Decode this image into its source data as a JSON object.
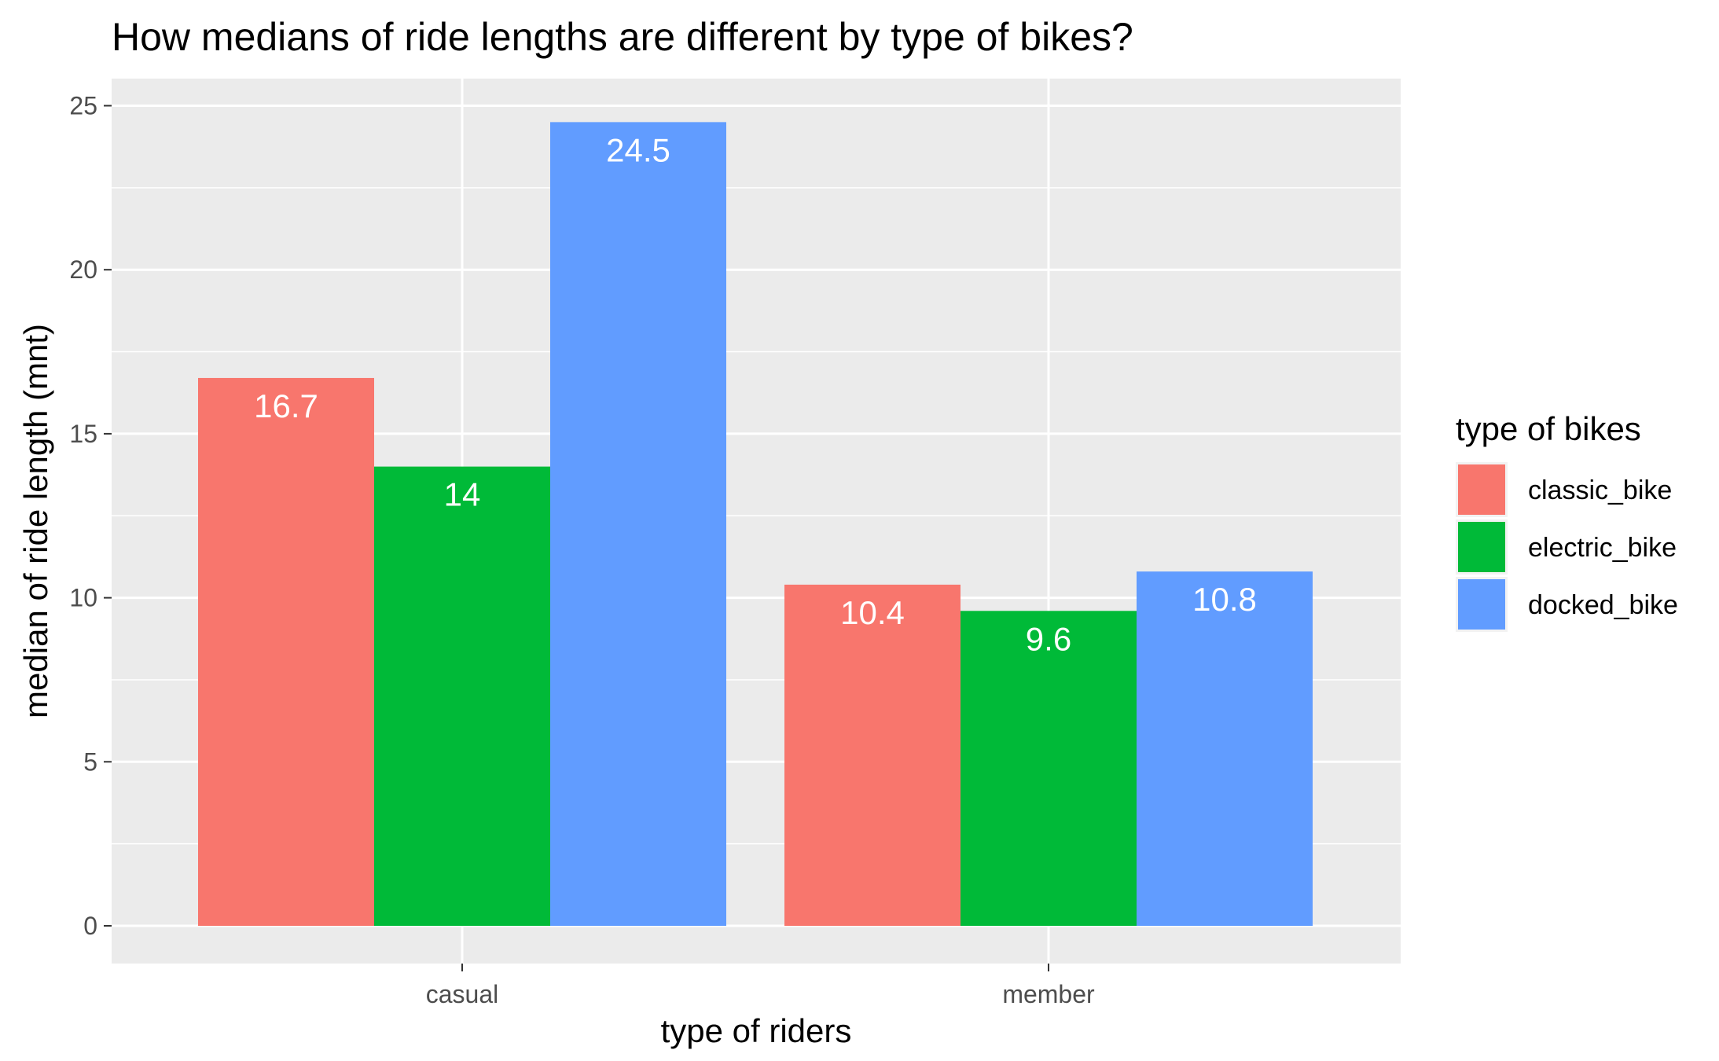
{
  "chart_data": {
    "type": "bar",
    "title": "How medians of ride lengths are different by type of bikes?",
    "xlabel": "type of riders",
    "ylabel": "median of ride length (mnt)",
    "categories": [
      "casual",
      "member"
    ],
    "series": [
      {
        "name": "classic_bike",
        "color": "#F8766D",
        "values": [
          16.7,
          10.4
        ],
        "labels": [
          "16.7",
          "10.4"
        ]
      },
      {
        "name": "electric_bike",
        "color": "#00BA38",
        "values": [
          14,
          9.6
        ],
        "labels": [
          "14",
          "9.6"
        ]
      },
      {
        "name": "docked_bike",
        "color": "#619CFF",
        "values": [
          24.5,
          10.8
        ],
        "labels": [
          "24.5",
          "10.8"
        ]
      }
    ],
    "ylim": [
      0,
      25
    ],
    "yticks": [
      "0",
      "5",
      "10",
      "15",
      "20",
      "25"
    ],
    "grid": true,
    "legend": {
      "title": "type of bikes",
      "position": "right"
    },
    "panel_color": "#EBEBEB"
  }
}
